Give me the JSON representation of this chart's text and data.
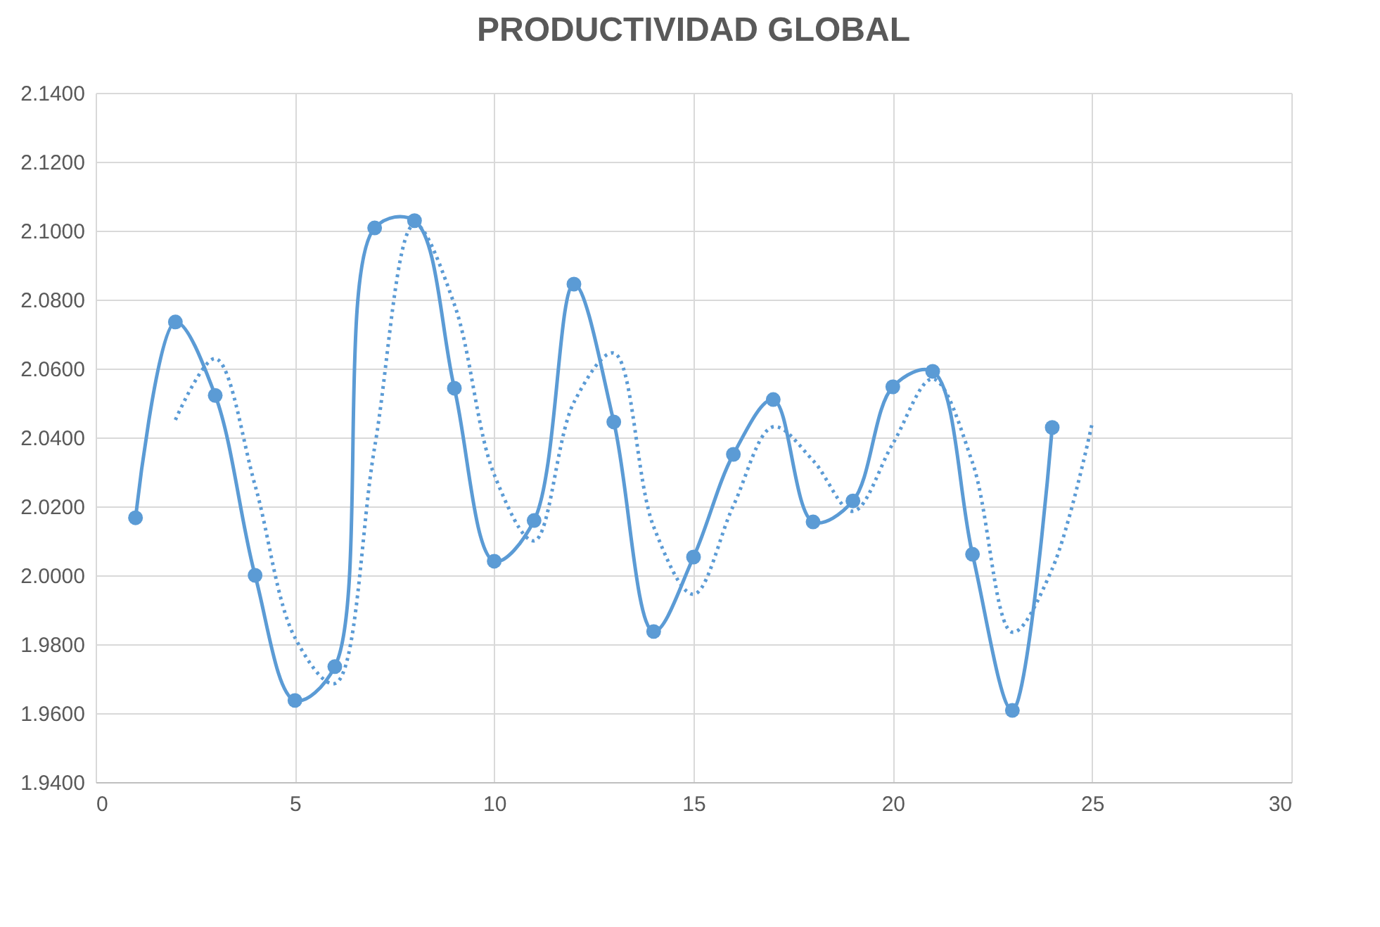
{
  "chart_data": {
    "type": "line",
    "title": "PRODUCTIVIDAD GLOBAL",
    "xlim": [
      0,
      30
    ],
    "xticks": [
      0,
      5,
      10,
      15,
      20,
      25,
      30
    ],
    "ylim": [
      1.94,
      2.14
    ],
    "yticks": [
      {
        "value": 1.94,
        "label": "1.9400"
      },
      {
        "value": 1.96,
        "label": "1.9600"
      },
      {
        "value": 1.98,
        "label": "1.9800"
      },
      {
        "value": 2.0,
        "label": "2.0000"
      },
      {
        "value": 2.02,
        "label": "2.0200"
      },
      {
        "value": 2.04,
        "label": "2.0400"
      },
      {
        "value": 2.06,
        "label": "2.0600"
      },
      {
        "value": 2.08,
        "label": "2.0800"
      },
      {
        "value": 2.1,
        "label": "2.1000"
      },
      {
        "value": 2.12,
        "label": "2.1200"
      },
      {
        "value": 2.14,
        "label": "2.1400"
      }
    ],
    "grid": true,
    "marker": "circle",
    "line_style": "solid",
    "series": [
      {
        "color": "#5b9bd5",
        "x": [
          1,
          2,
          3,
          4,
          5,
          6,
          7,
          8,
          9,
          10,
          11,
          12,
          13,
          14,
          15,
          16,
          17,
          18,
          19,
          20,
          21,
          22,
          23,
          24
        ],
        "values": [
          2.0167,
          2.0735,
          2.0522,
          2.0,
          1.9637,
          1.9735,
          2.1008,
          2.1029,
          2.0543,
          2.0041,
          2.0159,
          2.0845,
          2.0445,
          1.9837,
          2.0053,
          2.0351,
          2.051,
          2.0155,
          2.0216,
          2.0547,
          2.0592,
          2.0061,
          1.9608,
          2.0429
        ]
      },
      {
        "color": "#5b9bd5",
        "marker": "none",
        "line_style": "dotted",
        "x": [
          2,
          3,
          4,
          5,
          6,
          7,
          8,
          9,
          10,
          11,
          12,
          13,
          14,
          15,
          16,
          17,
          18,
          19,
          20,
          21,
          22,
          23,
          24,
          25
        ],
        "values": [
          2.0451,
          2.0629,
          2.0261,
          1.9819,
          1.9686,
          2.0372,
          2.1019,
          2.0786,
          2.0292,
          2.01,
          2.0502,
          2.0645,
          2.0141,
          1.9945,
          2.0202,
          2.0431,
          2.0333,
          2.0186,
          2.0382,
          2.057,
          2.0327,
          1.9835,
          2.0019,
          2.044
        ]
      }
    ]
  }
}
